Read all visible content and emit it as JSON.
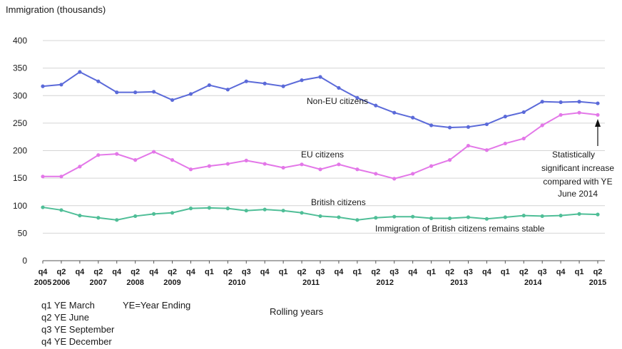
{
  "chart_data": {
    "type": "line",
    "ylabel": "Immigration (thousands)",
    "xlabel": "Rolling years",
    "ylim": [
      0,
      400
    ],
    "yticks": [
      0,
      50,
      100,
      150,
      200,
      250,
      300,
      350,
      400
    ],
    "grid": true,
    "x": [
      "q4 2005",
      "q2 2006",
      "q4 2006",
      "q2 2007",
      "q4 2007",
      "q2 2008",
      "q4 2008",
      "q2 2009",
      "q4 2009",
      "q1 2010",
      "q2 2010",
      "q3 2010",
      "q4 2010",
      "q1 2011",
      "q2 2011",
      "q3 2011",
      "q4 2011",
      "q1 2012",
      "q2 2012",
      "q3 2012",
      "q4 2012",
      "q1 2013",
      "q2 2013",
      "q3 2013",
      "q4 2013",
      "q1 2014",
      "q2 2014",
      "q3 2014",
      "q4 2014",
      "q1 2015",
      "q2 2015"
    ],
    "tick_quarters": [
      "q4",
      "q2",
      "q4",
      "q2",
      "q4",
      "q2",
      "q4",
      "q2",
      "q4",
      "q1",
      "q2",
      "q3",
      "q4",
      "q1",
      "q2",
      "q3",
      "q4",
      "q1",
      "q2",
      "q3",
      "q4",
      "q1",
      "q2",
      "q3",
      "q4",
      "q1",
      "q2",
      "q3",
      "q4",
      "q1",
      "q2"
    ],
    "tick_years": [
      {
        "label": "2005",
        "index": 0
      },
      {
        "label": "2006",
        "index": 1
      },
      {
        "label": "2007",
        "index": 3
      },
      {
        "label": "2008",
        "index": 5
      },
      {
        "label": "2009",
        "index": 7
      },
      {
        "label": "2010",
        "index": 10.5
      },
      {
        "label": "2011",
        "index": 14.5
      },
      {
        "label": "2012",
        "index": 18.5
      },
      {
        "label": "2013",
        "index": 22.5
      },
      {
        "label": "2014",
        "index": 26.5
      },
      {
        "label": "2015",
        "index": 30
      }
    ],
    "series": [
      {
        "name": "Non-EU citizens",
        "color": "#5b6ad9",
        "values": [
          317,
          320,
          343,
          326,
          306,
          306,
          307,
          292,
          303,
          319,
          311,
          326,
          322,
          317,
          328,
          334,
          314,
          296,
          282,
          269,
          260,
          246,
          242,
          243,
          248,
          262,
          270,
          289,
          288,
          289,
          286
        ]
      },
      {
        "name": "EU citizens",
        "color": "#e377e8",
        "values": [
          153,
          153,
          171,
          192,
          194,
          183,
          198,
          183,
          166,
          172,
          176,
          182,
          176,
          169,
          175,
          166,
          175,
          166,
          158,
          149,
          158,
          172,
          183,
          209,
          201,
          213,
          222,
          246,
          265,
          269,
          265
        ]
      },
      {
        "name": "British citizens",
        "color": "#4fbe97",
        "values": [
          97,
          92,
          82,
          78,
          74,
          81,
          85,
          87,
          95,
          96,
          95,
          91,
          93,
          91,
          87,
          81,
          79,
          74,
          78,
          80,
          80,
          77,
          77,
          79,
          76,
          79,
          82,
          81,
          82,
          85,
          84
        ]
      }
    ],
    "annotations": [
      {
        "text": "Non-EU citizens"
      },
      {
        "text": "EU citizens"
      },
      {
        "text": "British citizens"
      },
      {
        "text": "Immigration of British citizens remains stable"
      },
      {
        "text": "Statistically significant increase compared with YE June 2014"
      }
    ]
  },
  "notes": {
    "q1": "q1 YE March",
    "q2": "q2 YE June",
    "q3": "q3 YE September",
    "q4": "q4 YE December",
    "ye": "YE=Year Ending"
  }
}
